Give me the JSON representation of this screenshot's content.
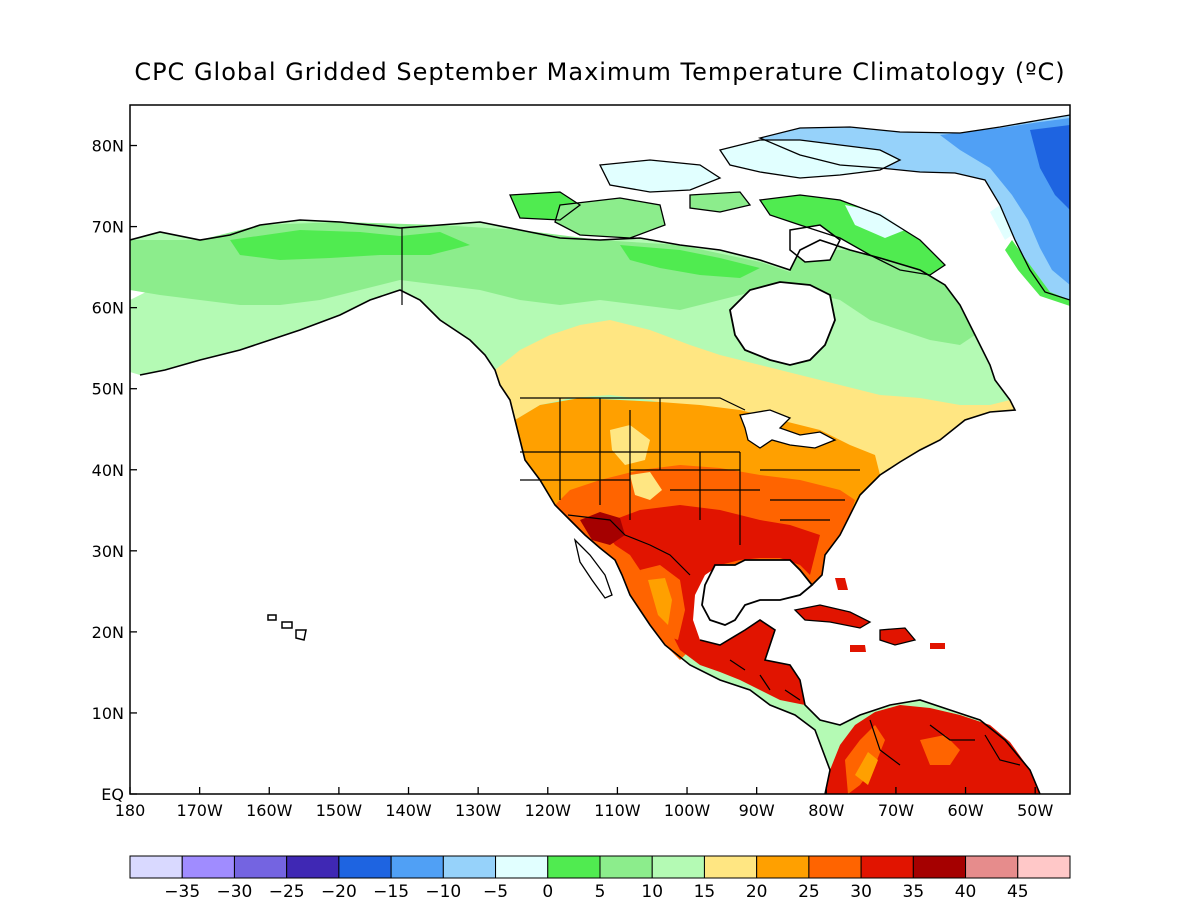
{
  "title": "CPC Global Gridded September Maximum Temperature Climatology (ºC)",
  "map": {
    "projection": "cylindrical equidistant",
    "lon_range": [
      -180,
      -45
    ],
    "lat_range": [
      0,
      85
    ],
    "x_ticks": [
      {
        "lon": -180,
        "label": "180"
      },
      {
        "lon": -170,
        "label": "170W"
      },
      {
        "lon": -160,
        "label": "160W"
      },
      {
        "lon": -150,
        "label": "150W"
      },
      {
        "lon": -140,
        "label": "140W"
      },
      {
        "lon": -130,
        "label": "130W"
      },
      {
        "lon": -120,
        "label": "120W"
      },
      {
        "lon": -110,
        "label": "110W"
      },
      {
        "lon": -100,
        "label": "100W"
      },
      {
        "lon": -90,
        "label": "90W"
      },
      {
        "lon": -80,
        "label": "80W"
      },
      {
        "lon": -70,
        "label": "70W"
      },
      {
        "lon": -60,
        "label": "60W"
      },
      {
        "lon": -50,
        "label": "50W"
      }
    ],
    "y_ticks": [
      {
        "lat": 0,
        "label": "EQ"
      },
      {
        "lat": 10,
        "label": "10N"
      },
      {
        "lat": 20,
        "label": "20N"
      },
      {
        "lat": 30,
        "label": "30N"
      },
      {
        "lat": 40,
        "label": "40N"
      },
      {
        "lat": 50,
        "label": "50N"
      },
      {
        "lat": 60,
        "label": "60N"
      },
      {
        "lat": 70,
        "label": "70N"
      },
      {
        "lat": 80,
        "label": "80N"
      }
    ]
  },
  "colorbar": {
    "colors": [
      "#d9d9ff",
      "#a08cff",
      "#7464e1",
      "#3f28b4",
      "#1e64e1",
      "#50a0f5",
      "#96d2fa",
      "#e1ffff",
      "#50eb50",
      "#8ced8c",
      "#b4fab4",
      "#ffe682",
      "#ffa000",
      "#ff6400",
      "#e11400",
      "#a50000",
      "#e68c8c",
      "#ffc8c8"
    ],
    "labels": [
      "-35",
      "-30",
      "-25",
      "-20",
      "-15",
      "-10",
      "-5",
      "0",
      "5",
      "10",
      "15",
      "20",
      "25",
      "30",
      "35",
      "40",
      "45"
    ]
  }
}
